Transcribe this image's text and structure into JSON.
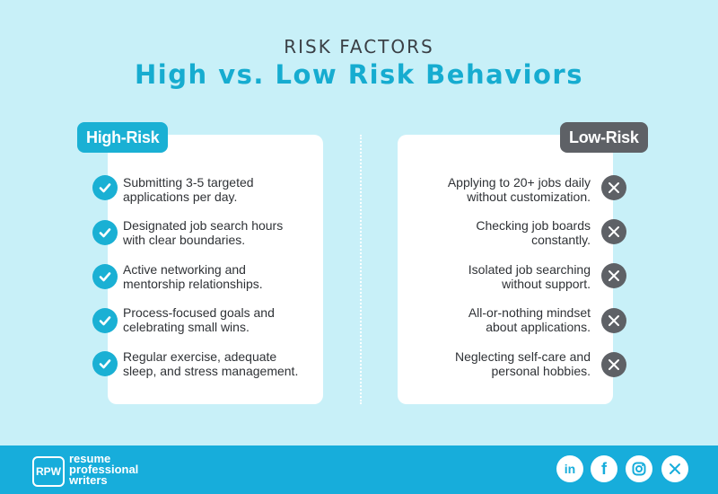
{
  "header": {
    "kicker": "RISK FACTORS",
    "title": "High vs. Low Risk Behaviors"
  },
  "high_risk": {
    "label": "High-Risk",
    "items": [
      {
        "line1": "Submitting 3-5 targeted",
        "line2": "applications per day."
      },
      {
        "line1": "Designated job search hours",
        "line2": "with clear boundaries."
      },
      {
        "line1": "Active networking and",
        "line2": "mentorship relationships."
      },
      {
        "line1": "Process-focused goals and",
        "line2": "celebrating small wins."
      },
      {
        "line1": "Regular exercise, adequate",
        "line2": "sleep, and stress management."
      }
    ]
  },
  "low_risk": {
    "label": "Low-Risk",
    "items": [
      {
        "line1": "Applying to 20+ jobs daily",
        "line2": "without customization."
      },
      {
        "line1": "Checking job boards",
        "line2": "constantly."
      },
      {
        "line1": "Isolated job searching",
        "line2": "without support."
      },
      {
        "line1": "All-or-nothing mindset",
        "line2": "about applications."
      },
      {
        "line1": "Neglecting self-care and",
        "line2": "personal hobbies."
      }
    ]
  },
  "footer": {
    "logo_abbr": "RPW",
    "logo_line1": "resume",
    "logo_line2": "professional",
    "logo_line3": "writers",
    "social": [
      "linkedin-icon",
      "facebook-icon",
      "instagram-icon",
      "x-icon"
    ]
  },
  "colors": {
    "background": "#c8f0f8",
    "accent": "#1ab0d4",
    "dark": "#5e6166",
    "footer": "#17addb"
  }
}
